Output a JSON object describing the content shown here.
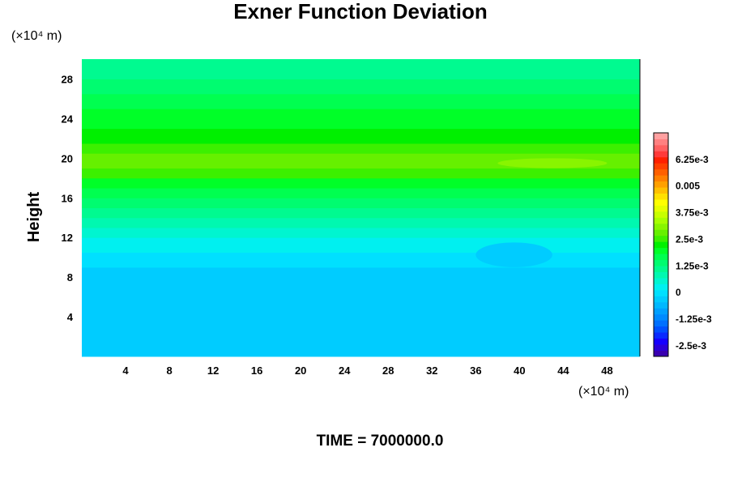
{
  "chart_data": {
    "type": "heatmap",
    "title": "Exner Function Deviation",
    "xlabel": "",
    "ylabel": "Height",
    "x_unit": "(×10⁴ m)",
    "y_unit": "(×10⁴ m)",
    "xlim": [
      0,
      51
    ],
    "ylim": [
      0,
      30
    ],
    "x_ticks": [
      "4",
      "8",
      "12",
      "16",
      "20",
      "24",
      "28",
      "32",
      "36",
      "40",
      "44",
      "48"
    ],
    "y_ticks": [
      "4",
      "8",
      "12",
      "16",
      "20",
      "24",
      "28"
    ],
    "x_tick_values": [
      4,
      8,
      12,
      16,
      20,
      24,
      28,
      32,
      36,
      40,
      44,
      48
    ],
    "y_tick_values": [
      4,
      8,
      12,
      16,
      20,
      24,
      28
    ],
    "grid": false,
    "legend": "right",
    "colorbar": {
      "min": -0.003,
      "max": 0.0075,
      "step": 0.00025,
      "labels": [
        "-2.5e-3",
        "-1.25e-3",
        "0",
        "1.25e-3",
        "2.5e-3",
        "3.75e-3",
        "0.005",
        "6.25e-3"
      ],
      "label_values": [
        -0.0025,
        -0.00125,
        0,
        0.00125,
        0.0025,
        0.00375,
        0.005,
        0.00625
      ],
      "colors": [
        "#3a00b0",
        "#2a00d8",
        "#1500ff",
        "#0a2aff",
        "#0050ff",
        "#0070ff",
        "#008aff",
        "#00a0ff",
        "#00b8ff",
        "#00ccff",
        "#00e0ff",
        "#00f0f0",
        "#00f5d0",
        "#00f8b0",
        "#00fa90",
        "#00fc70",
        "#00ff50",
        "#00ff28",
        "#00f000",
        "#3cf000",
        "#66f000",
        "#88f500",
        "#a8ff00",
        "#c8ff00",
        "#e6ff00",
        "#ffff00",
        "#ffe000",
        "#ffc000",
        "#ffa000",
        "#ff8000",
        "#ff6000",
        "#ff4000",
        "#ff2000",
        "#ff3a3a",
        "#ff6060",
        "#ff8080",
        "#ffa0a0"
      ]
    },
    "field_bands": [
      {
        "y0": 0,
        "y1": 9.0,
        "value": -0.00012,
        "color": "#00ccff"
      },
      {
        "y0": 9.0,
        "y1": 10.5,
        "value": 0.0001,
        "color": "#00e0ff"
      },
      {
        "y0": 10.5,
        "y1": 12.0,
        "value": 0.0003,
        "color": "#00f0f0"
      },
      {
        "y0": 12.0,
        "y1": 13.0,
        "value": 0.0006,
        "color": "#00f5d0"
      },
      {
        "y0": 13.0,
        "y1": 14.0,
        "value": 0.0009,
        "color": "#00f8b0"
      },
      {
        "y0": 14.0,
        "y1": 15.0,
        "value": 0.0012,
        "color": "#00fa90"
      },
      {
        "y0": 15.0,
        "y1": 16.0,
        "value": 0.0015,
        "color": "#00fc70"
      },
      {
        "y0": 16.0,
        "y1": 17.0,
        "value": 0.0018,
        "color": "#00ff50"
      },
      {
        "y0": 17.0,
        "y1": 18.0,
        "value": 0.0021,
        "color": "#00ff28"
      },
      {
        "y0": 18.0,
        "y1": 19.0,
        "value": 0.0025,
        "color": "#3cf000"
      },
      {
        "y0": 19.0,
        "y1": 20.5,
        "value": 0.0028,
        "color": "#66f000"
      },
      {
        "y0": 20.5,
        "y1": 21.5,
        "value": 0.0026,
        "color": "#3cf000"
      },
      {
        "y0": 21.5,
        "y1": 23.0,
        "value": 0.0022,
        "color": "#00f000"
      },
      {
        "y0": 23.0,
        "y1": 25.0,
        "value": 0.002,
        "color": "#00ff28"
      },
      {
        "y0": 25.0,
        "y1": 26.5,
        "value": 0.0017,
        "color": "#00ff50"
      },
      {
        "y0": 26.5,
        "y1": 28.0,
        "value": 0.0014,
        "color": "#00fc70"
      },
      {
        "y0": 28.0,
        "y1": 30.0,
        "value": 0.0012,
        "color": "#00fa90"
      }
    ],
    "field_features": [
      {
        "type": "bump",
        "x0": 36,
        "x1": 43,
        "y0": 9.0,
        "y1": 11.5,
        "color": "#00ccff"
      },
      {
        "type": "patch",
        "x0": 38,
        "x1": 48,
        "y0": 19.0,
        "y1": 20.0,
        "color": "#88f500"
      }
    ]
  },
  "footer": {
    "time_label": "TIME = 7000000.0"
  }
}
